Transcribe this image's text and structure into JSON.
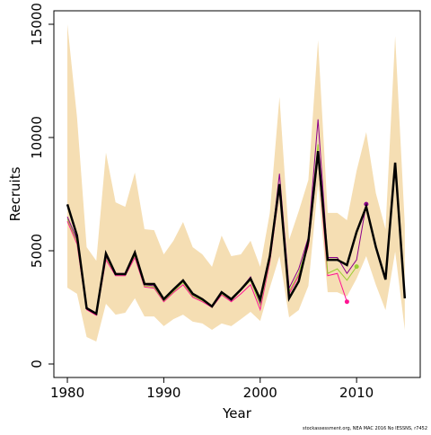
{
  "chart_data": {
    "type": "line",
    "x_label": "Year",
    "y_label": "Recruits",
    "footnote": "stockassessment.org, NEA MAC 2016 No IESSNS, r7452",
    "x": [
      1980,
      1981,
      1982,
      1983,
      1984,
      1985,
      1986,
      1987,
      1988,
      1989,
      1990,
      1991,
      1992,
      1993,
      1994,
      1995,
      1996,
      1997,
      1998,
      1999,
      2000,
      2001,
      2002,
      2003,
      2004,
      2005,
      2006,
      2007,
      2008,
      2009,
      2010,
      2011,
      2012,
      2013,
      2014,
      2015
    ],
    "band": {
      "color": "#f5deb3",
      "upper": [
        15000,
        10900,
        5160,
        4560,
        9330,
        7140,
        6940,
        8450,
        5950,
        5910,
        4840,
        5440,
        6270,
        5160,
        4840,
        4290,
        5670,
        4760,
        4840,
        5440,
        4290,
        6670,
        11790,
        5480,
        6750,
        8130,
        14290,
        6670,
        6670,
        6350,
        8530,
        10240,
        7540,
        5950,
        14480,
        6150
      ],
      "lower": [
        3370,
        3100,
        1190,
        990,
        2660,
        2180,
        2260,
        2900,
        2100,
        2100,
        1670,
        1980,
        2180,
        1870,
        1790,
        1510,
        1790,
        1670,
        1980,
        2300,
        1900,
        3370,
        4760,
        2060,
        2380,
        3450,
        7940,
        3170,
        3170,
        2980,
        3770,
        4760,
        3490,
        2380,
        4960,
        1510
      ]
    },
    "series": [
      {
        "color": "#ff1493",
        "values": [
          6300,
          5300,
          2400,
          2150,
          4600,
          3900,
          3900,
          4700,
          3400,
          3350,
          2750,
          3150,
          3500,
          2950,
          2750,
          2500,
          3050,
          2750,
          3100,
          3500,
          2400,
          4500,
          7700,
          3100,
          3900,
          5200,
          9200,
          3900,
          4000,
          2750,
          null,
          null,
          null,
          null,
          null,
          null
        ]
      },
      {
        "color": "#9acd32",
        "values": [
          6400,
          5400,
          2450,
          2200,
          4700,
          3950,
          3950,
          4800,
          3450,
          3400,
          2800,
          3200,
          3600,
          3000,
          2800,
          2550,
          3100,
          2800,
          3250,
          3700,
          2600,
          4600,
          7900,
          3200,
          4000,
          5400,
          9700,
          4000,
          4200,
          3700,
          4300,
          null,
          null,
          null,
          null,
          null
        ]
      },
      {
        "color": "#8b008b",
        "values": [
          6500,
          5500,
          2500,
          2250,
          4750,
          4000,
          4000,
          4900,
          3500,
          3450,
          2850,
          3250,
          3650,
          3050,
          2850,
          2550,
          3150,
          2800,
          3300,
          3850,
          2700,
          4700,
          8400,
          3350,
          4200,
          5600,
          10800,
          4700,
          4700,
          4000,
          4600,
          7060,
          null,
          null,
          null,
          null
        ]
      },
      {
        "color": "#000000",
        "values": [
          7050,
          5670,
          2460,
          2220,
          4880,
          3970,
          3970,
          4920,
          3530,
          3530,
          2860,
          3290,
          3690,
          3100,
          2860,
          2540,
          3170,
          2860,
          3290,
          3770,
          2860,
          4760,
          7940,
          2900,
          3650,
          5440,
          9400,
          4600,
          4600,
          4370,
          5830,
          6940,
          5160,
          3730,
          8890,
          2900
        ]
      }
    ],
    "xlim": [
      1978.6,
      2016.6
    ],
    "ylim": [
      -595,
      15595
    ],
    "xticks": [
      1980,
      1990,
      2000,
      2010
    ],
    "yticks": [
      0,
      5000,
      10000,
      15000
    ]
  }
}
